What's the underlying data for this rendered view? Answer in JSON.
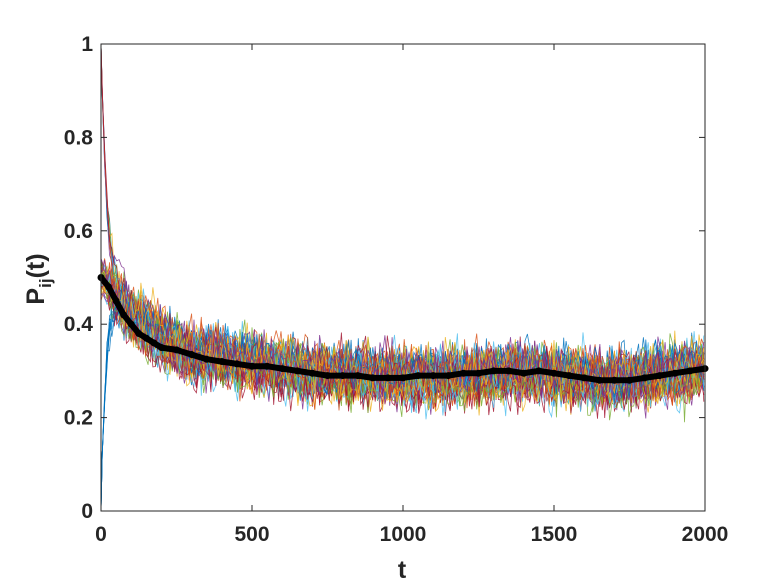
{
  "chart_data": {
    "type": "line",
    "xlabel": "t",
    "ylabel": {
      "main": "P",
      "sub": "ij",
      "suffix": "(t)"
    },
    "xlim": [
      0,
      2000
    ],
    "ylim": [
      0,
      1
    ],
    "xticks": [
      0,
      500,
      1000,
      1500,
      2000
    ],
    "xtick_labels": [
      "0",
      "500",
      "1000",
      "1500",
      "2000"
    ],
    "yticks": [
      0,
      0.2,
      0.4,
      0.6,
      0.8,
      1
    ],
    "ytick_labels": [
      "0",
      "0.2",
      "0.4",
      "0.6",
      "0.8",
      "1"
    ],
    "grid": false,
    "box": true,
    "background_series": {
      "description_values": "many noisy trajectories P_ij(t) starting near 0 or 1 and relaxing into a band",
      "band_center": [
        [
          0,
          0.5
        ],
        [
          50,
          0.46
        ],
        [
          100,
          0.42
        ],
        [
          200,
          0.37
        ],
        [
          300,
          0.34
        ],
        [
          500,
          0.32
        ],
        [
          700,
          0.3
        ],
        [
          900,
          0.29
        ],
        [
          1000,
          0.29
        ],
        [
          1200,
          0.29
        ],
        [
          1400,
          0.3
        ],
        [
          1600,
          0.29
        ],
        [
          1700,
          0.28
        ],
        [
          1800,
          0.29
        ],
        [
          1900,
          0.3
        ],
        [
          2000,
          0.31
        ]
      ],
      "band_spread": 0.12,
      "count": 60,
      "colors": [
        "#0072BD",
        "#D95319",
        "#EDB120",
        "#7E2F8E",
        "#77AC30",
        "#4DBEEE",
        "#A2142F"
      ]
    },
    "mean_series": {
      "color": "#000000",
      "x": [
        0,
        25,
        50,
        75,
        100,
        125,
        150,
        175,
        200,
        250,
        300,
        350,
        400,
        450,
        500,
        550,
        600,
        650,
        700,
        750,
        800,
        850,
        900,
        950,
        1000,
        1050,
        1100,
        1150,
        1200,
        1250,
        1300,
        1350,
        1400,
        1450,
        1500,
        1550,
        1600,
        1650,
        1700,
        1750,
        1800,
        1850,
        1900,
        1950,
        2000
      ],
      "y": [
        0.5,
        0.48,
        0.45,
        0.42,
        0.4,
        0.38,
        0.37,
        0.36,
        0.35,
        0.345,
        0.335,
        0.325,
        0.32,
        0.315,
        0.31,
        0.31,
        0.305,
        0.3,
        0.295,
        0.29,
        0.29,
        0.29,
        0.285,
        0.285,
        0.285,
        0.29,
        0.29,
        0.29,
        0.295,
        0.295,
        0.3,
        0.3,
        0.295,
        0.3,
        0.295,
        0.29,
        0.285,
        0.28,
        0.28,
        0.28,
        0.285,
        0.29,
        0.295,
        0.3,
        0.305
      ]
    }
  }
}
